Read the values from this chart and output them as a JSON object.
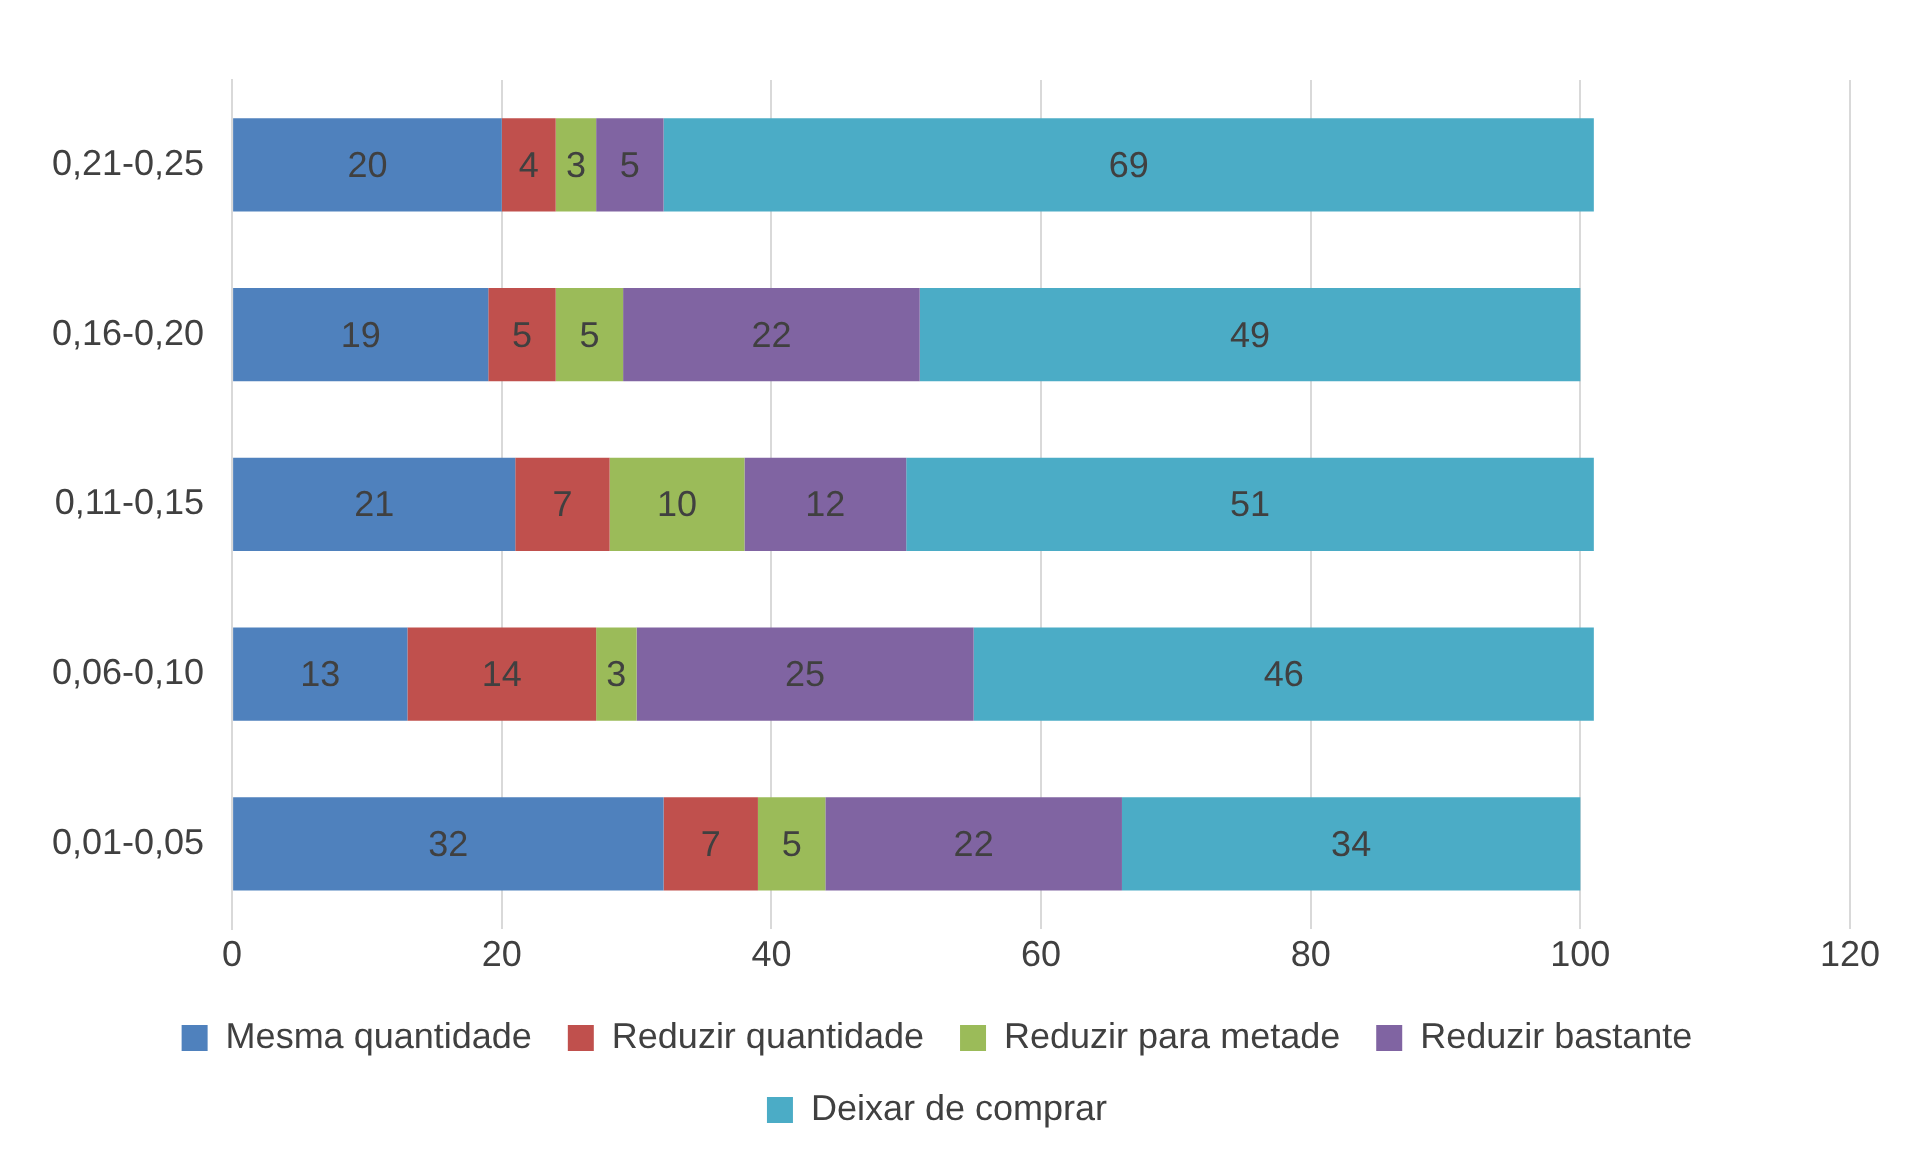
{
  "chart_data": {
    "type": "bar",
    "orientation": "horizontal",
    "stacked": true,
    "categories": [
      "0,21-0,25",
      "0,16-0,20",
      "0,11-0,15",
      "0,06-0,10",
      "0,01-0,05"
    ],
    "series": [
      {
        "name": "Mesma quantidade",
        "color": "#4f81bd",
        "values": [
          20,
          19,
          21,
          13,
          32
        ]
      },
      {
        "name": "Reduzir quantidade",
        "color": "#c0504d",
        "values": [
          4,
          5,
          7,
          14,
          7
        ]
      },
      {
        "name": "Reduzir para metade",
        "color": "#9bbb59",
        "values": [
          3,
          5,
          10,
          3,
          5
        ]
      },
      {
        "name": "Reduzir bastante",
        "color": "#8064a2",
        "values": [
          5,
          22,
          12,
          25,
          22
        ]
      },
      {
        "name": "Deixar de comprar",
        "color": "#4bacc6",
        "values": [
          69,
          49,
          51,
          46,
          34
        ]
      }
    ],
    "xlim": [
      0,
      120
    ],
    "xticks": [
      0,
      20,
      40,
      60,
      80,
      100,
      120
    ],
    "grid": "x",
    "legend": "bottom",
    "data_labels": true
  }
}
